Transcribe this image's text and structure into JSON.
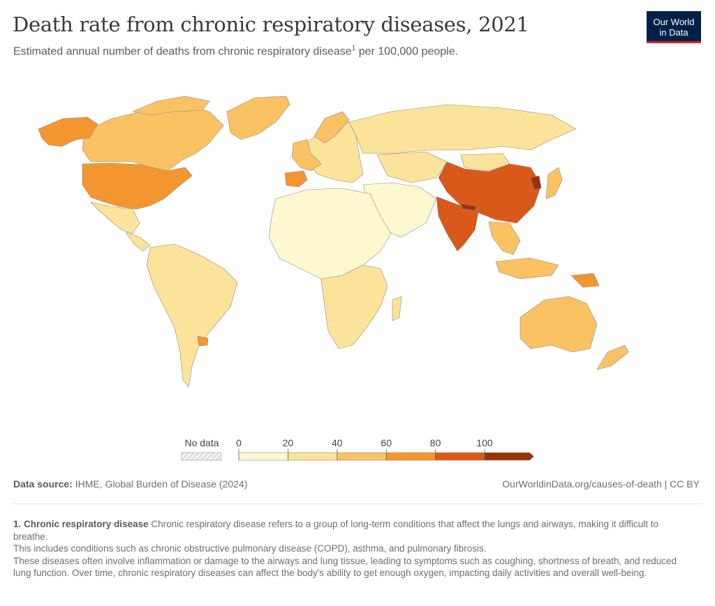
{
  "header": {
    "title": "Death rate from chronic respiratory diseases, 2021",
    "subtitle_before": "Estimated annual number of deaths from chronic respiratory disease",
    "subtitle_sup": "1",
    "subtitle_after": " per 100,000 people."
  },
  "logo": {
    "line1": "Our World",
    "line2": "in Data",
    "bg": "#002147",
    "accent": "#ce261e"
  },
  "legend": {
    "no_data_label": "No data",
    "ticks": [
      "0",
      "20",
      "40",
      "60",
      "80",
      "100"
    ],
    "bins": [
      "#fef8d0",
      "#fbe39a",
      "#fbc263",
      "#f4962f",
      "#d9591a",
      "#9b3208"
    ]
  },
  "map_colors": {
    "north_america_usa": "#f4962f",
    "canada": "#fbc263",
    "alaska": "#f4962f",
    "mexico_central_america": "#fbe39a",
    "greenland": "#fbc263",
    "south_america": "#fbe39a",
    "uruguay": "#f4962f",
    "europe": "#fbe39a",
    "western_europe": "#fbc263",
    "spain": "#f4962f",
    "russia": "#fbe39a",
    "africa_north": "#fef8d0",
    "africa_south": "#fbe39a",
    "middle_east": "#fef8d0",
    "china": "#d9591a",
    "india": "#d9591a",
    "nepal": "#9b3208",
    "korea": "#9b3208",
    "japan": "#fbc263",
    "southeast_asia": "#fbc263",
    "indonesia": "#fbc263",
    "papua_new_guinea": "#f4962f",
    "australia": "#fbc263",
    "new_zealand": "#fbc263",
    "mongolia": "#fbe39a",
    "central_asia": "#fbe39a"
  },
  "footer": {
    "source_label": "Data source:",
    "source_text": " IHME, Global Burden of Disease (2024)",
    "url": "OurWorldinData.org/causes-of-death | CC BY"
  },
  "note": {
    "number": "1.",
    "term": "Chronic respiratory disease",
    "definition": " Chronic respiratory disease refers to a group of long-term conditions that affect the lungs and airways, making it difficult to breathe.",
    "line2": "This includes conditions such as chronic obstructive pulmonary disease (COPD), asthma, and pulmonary fibrosis.",
    "line3": "These diseases often involve inflammation or damage to the airways and lung tissue, leading to symptoms such as coughing, shortness of breath, and reduced lung function. Over time, chronic respiratory diseases can affect the body's ability to get enough oxygen, impacting daily activities and overall well-being."
  }
}
